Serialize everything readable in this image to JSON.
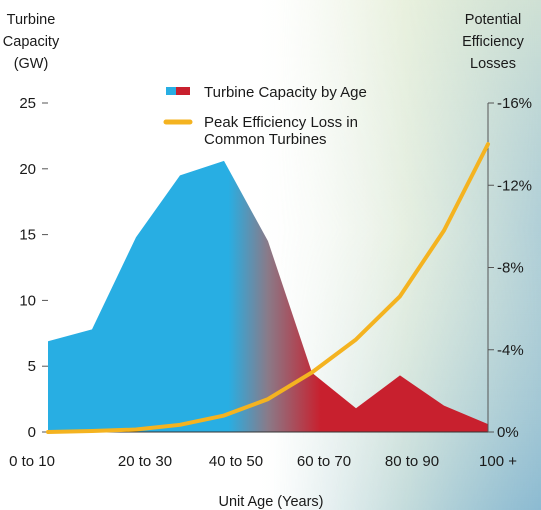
{
  "chart_data": {
    "type": "area",
    "categories": [
      "0 to 10",
      "20 to 30",
      "40 to 50",
      "60 to 70",
      "80 to 90",
      "100 +"
    ],
    "x": [
      0,
      10,
      20,
      30,
      40,
      50,
      60,
      70,
      80,
      90,
      100
    ],
    "series": [
      {
        "name": "Turbine Capacity by Age",
        "axis": "left",
        "style": "area",
        "values": [
          6.9,
          7.8,
          14.8,
          19.5,
          20.6,
          14.5,
          4.5,
          1.8,
          4.3,
          2.0,
          0.6
        ]
      },
      {
        "name": "Peak Efficiency Loss in Common Turbines",
        "axis": "right",
        "style": "line",
        "values": [
          0.0,
          0.05,
          0.12,
          0.35,
          0.8,
          1.6,
          2.9,
          4.5,
          6.6,
          9.8,
          14.0
        ]
      }
    ],
    "y_left": {
      "label_lines": [
        "Turbine",
        "Capacity",
        "(GW)"
      ],
      "ticks": [
        "0",
        "5",
        "10",
        "15",
        "20",
        "25"
      ],
      "ylim": [
        0,
        25
      ]
    },
    "y_right": {
      "label_lines": [
        "Potential",
        "Efficiency",
        "Losses"
      ],
      "ticks": [
        "0%",
        "-4%",
        "-8%",
        "-12%",
        "-16%"
      ],
      "ylim": [
        0,
        16
      ]
    },
    "xlabel": "Unit Age (Years)",
    "legend": {
      "position": "top-center",
      "entries": [
        {
          "line1": "Turbine Capacity by Age",
          "line2": ""
        },
        {
          "line1": "Peak Efficiency Loss in",
          "line2": "Common Turbines"
        }
      ]
    },
    "colors": {
      "young": "#28aee3",
      "old": "#c8202e",
      "mid": "#8a7a88",
      "line": "#f4b320",
      "text": "#1a1a1a"
    },
    "grid": false
  }
}
